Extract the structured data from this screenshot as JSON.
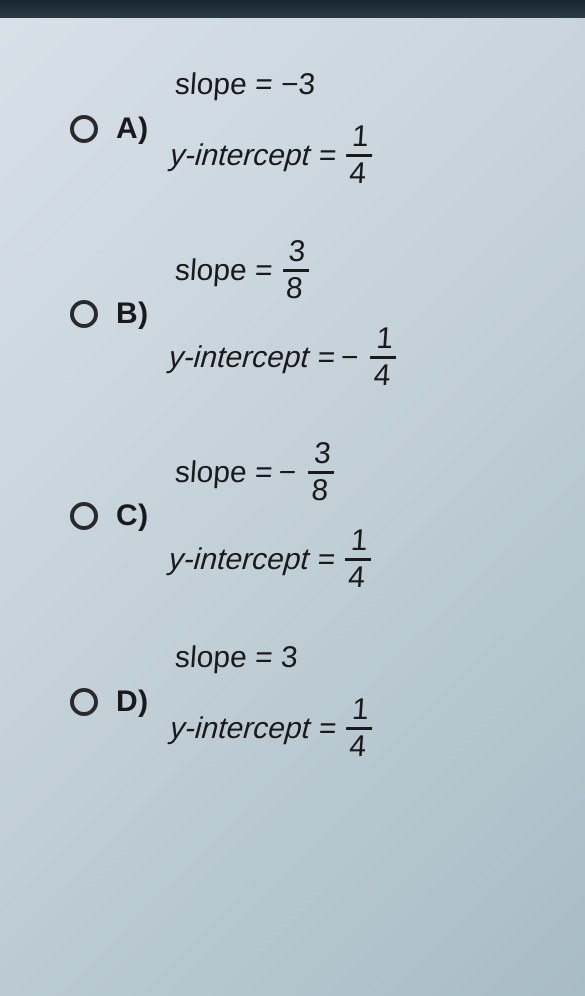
{
  "background_gradient": [
    "#d8e0e8",
    "#c8d4dc",
    "#b8c8d0",
    "#a8bcc6"
  ],
  "text_color": "#1a1a1a",
  "radio_border_color": "#2a2a2a",
  "font_family": "Arial",
  "font_size_pt": 22,
  "options": [
    {
      "letter": "A)",
      "slope": {
        "text": "slope = −3",
        "value": -3,
        "is_fraction": false
      },
      "y_intercept": {
        "label": "y-intercept =",
        "sign": "",
        "num": "1",
        "den": "4",
        "value": 0.25
      }
    },
    {
      "letter": "B)",
      "slope": {
        "text": "slope =",
        "sign": "",
        "num": "3",
        "den": "8",
        "is_fraction": true,
        "value": 0.375
      },
      "y_intercept": {
        "label": "y-intercept =",
        "sign": "−",
        "num": "1",
        "den": "4",
        "value": -0.25
      }
    },
    {
      "letter": "C)",
      "slope": {
        "text": "slope =",
        "sign": "−",
        "num": "3",
        "den": "8",
        "is_fraction": true,
        "value": -0.375
      },
      "y_intercept": {
        "label": "y-intercept =",
        "sign": "",
        "num": "1",
        "den": "4",
        "value": 0.25
      }
    },
    {
      "letter": "D)",
      "slope": {
        "text": "slope = 3",
        "value": 3,
        "is_fraction": false
      },
      "y_intercept": {
        "label": "y-intercept =",
        "sign": "",
        "num": "1",
        "den": "4",
        "value": 0.25
      }
    }
  ]
}
